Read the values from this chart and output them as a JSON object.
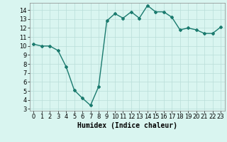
{
  "x": [
    0,
    1,
    2,
    3,
    4,
    5,
    6,
    7,
    8,
    9,
    10,
    11,
    12,
    13,
    14,
    15,
    16,
    17,
    18,
    19,
    20,
    21,
    22,
    23
  ],
  "y": [
    10.2,
    10.0,
    10.0,
    9.5,
    7.7,
    5.1,
    4.2,
    3.4,
    5.5,
    12.8,
    13.6,
    13.1,
    13.8,
    13.1,
    14.5,
    13.8,
    13.8,
    13.2,
    11.8,
    12.0,
    11.8,
    11.4,
    11.4,
    12.1
  ],
  "line_color": "#1a7a6e",
  "marker": "D",
  "marker_size": 2.0,
  "bg_color": "#d9f5f0",
  "grid_color": "#b8ddd8",
  "xlabel": "Humidex (Indice chaleur)",
  "xlim": [
    -0.5,
    23.5
  ],
  "ylim": [
    2.8,
    14.8
  ],
  "yticks": [
    3,
    4,
    5,
    6,
    7,
    8,
    9,
    10,
    11,
    12,
    13,
    14
  ],
  "xticks": [
    0,
    1,
    2,
    3,
    4,
    5,
    6,
    7,
    8,
    9,
    10,
    11,
    12,
    13,
    14,
    15,
    16,
    17,
    18,
    19,
    20,
    21,
    22,
    23
  ],
  "tick_fontsize": 6,
  "xlabel_fontsize": 7,
  "line_width": 1.0
}
